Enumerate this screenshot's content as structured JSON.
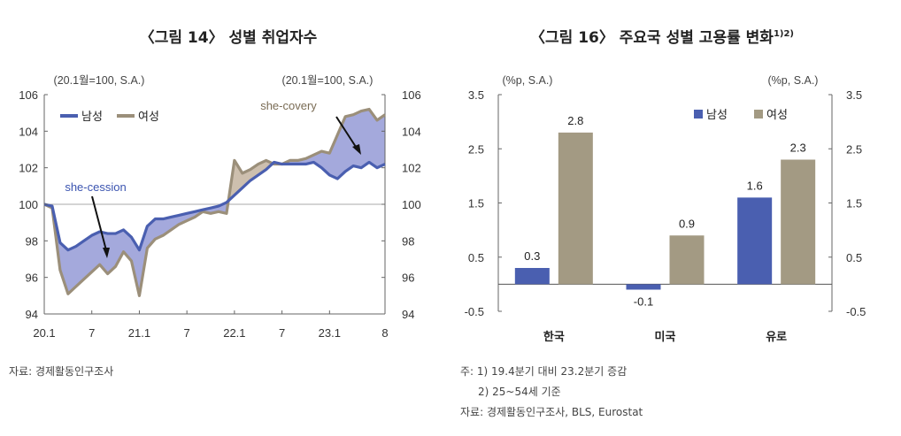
{
  "chart14": {
    "title": "〈그림 14〉 성별 취업자수",
    "unit_left": "(20.1월=100, S.A.)",
    "unit_right": "(20.1월=100, S.A.)",
    "source": "자료: 경제활동인구조사",
    "annotation_cession": "she-cession",
    "annotation_covery": "she-covery",
    "colors": {
      "male": "#4a5fb0",
      "female": "#9b8f7a",
      "fill_cession": "#a4a9dc",
      "fill_covery": "#cdbfae"
    }
  },
  "chart16": {
    "title": "〈그림 16〉 주요국 성별 고용률 변화",
    "title_sup": "1)2)",
    "unit_left": "(%p, S.A.)",
    "unit_right": "(%p, S.A.)",
    "notes": [
      "주: 1) 19.4분기 대비 23.2분기 증감",
      "2) 25~54세 기준",
      "자료: 경제활동인구조사, BLS, Eurostat"
    ],
    "colors": {
      "male": "#4a5fb0",
      "female": "#a39a83"
    }
  },
  "chart_data": [
    {
      "type": "line",
      "title": "〈그림 14〉 성별 취업자수",
      "x_ticks": [
        "20.1",
        "7",
        "21.1",
        "7",
        "22.1",
        "7",
        "23.1",
        "8"
      ],
      "ylim": [
        94,
        106
      ],
      "y_ticks": [
        94,
        96,
        98,
        100,
        102,
        104,
        106
      ],
      "legend": "top-left",
      "grid": false,
      "reference_line": 100,
      "x": [
        "20.1",
        "20.2",
        "20.3",
        "20.4",
        "20.5",
        "20.6",
        "20.7",
        "20.8",
        "20.9",
        "20.10",
        "20.11",
        "20.12",
        "21.1",
        "21.2",
        "21.3",
        "21.4",
        "21.5",
        "21.6",
        "21.7",
        "21.8",
        "21.9",
        "21.10",
        "21.11",
        "21.12",
        "22.1",
        "22.2",
        "22.3",
        "22.4",
        "22.5",
        "22.6",
        "22.7",
        "22.8",
        "22.9",
        "22.10",
        "22.11",
        "22.12",
        "23.1",
        "23.2",
        "23.3",
        "23.4",
        "23.5",
        "23.6",
        "23.7",
        "23.8"
      ],
      "series": [
        {
          "name": "남성",
          "values": [
            100.0,
            99.9,
            97.9,
            97.5,
            97.7,
            98.0,
            98.3,
            98.5,
            98.4,
            98.4,
            98.6,
            98.2,
            97.5,
            98.8,
            99.2,
            99.2,
            99.3,
            99.4,
            99.5,
            99.6,
            99.7,
            99.8,
            99.9,
            100.1,
            100.5,
            100.9,
            101.3,
            101.6,
            101.9,
            102.3,
            102.2,
            102.2,
            102.2,
            102.2,
            102.3,
            102.0,
            101.6,
            101.4,
            101.8,
            102.1,
            102.0,
            102.3,
            102.0,
            102.2
          ]
        },
        {
          "name": "여성",
          "values": [
            100.0,
            99.8,
            96.4,
            95.1,
            95.5,
            95.9,
            96.3,
            96.7,
            96.2,
            96.6,
            97.4,
            96.9,
            95.0,
            97.6,
            98.1,
            98.3,
            98.6,
            98.9,
            99.1,
            99.3,
            99.6,
            99.5,
            99.6,
            99.5,
            102.4,
            101.7,
            101.9,
            102.2,
            102.4,
            102.2,
            102.2,
            102.4,
            102.4,
            102.5,
            102.7,
            102.9,
            102.8,
            103.8,
            104.8,
            104.9,
            105.1,
            105.2,
            104.6,
            104.9
          ]
        }
      ]
    },
    {
      "type": "bar",
      "title": "〈그림 16〉 주요국 성별 고용률 변화",
      "categories": [
        "한국",
        "미국",
        "유로"
      ],
      "ylim": [
        -0.5,
        3.5
      ],
      "y_ticks": [
        -0.5,
        0.5,
        1.5,
        2.5,
        3.5
      ],
      "legend": "top-right",
      "grid": false,
      "series": [
        {
          "name": "남성",
          "values": [
            0.3,
            -0.1,
            1.6
          ]
        },
        {
          "name": "여성",
          "values": [
            2.8,
            0.9,
            2.3
          ]
        }
      ]
    }
  ]
}
